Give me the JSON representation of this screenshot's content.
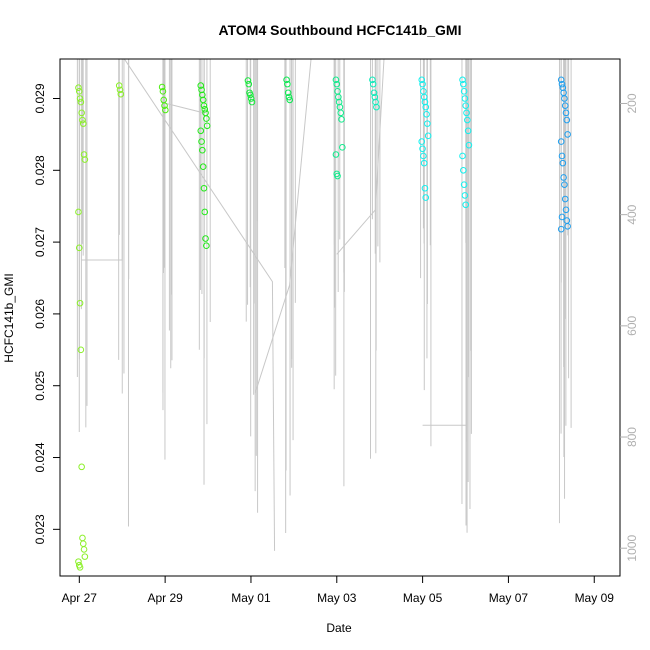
{
  "chart_data": {
    "type": "scatter",
    "title": "ATOM4 Southbound HCFC141b_GMI",
    "xlabel": "Date",
    "ylabel": "HCFC141b_GMI",
    "x_ticks": [
      {
        "day": 0,
        "label": "Apr 27"
      },
      {
        "day": 2,
        "label": "Apr 29"
      },
      {
        "day": 4,
        "label": "May 01"
      },
      {
        "day": 6,
        "label": "May 03"
      },
      {
        "day": 8,
        "label": "May 05"
      },
      {
        "day": 10,
        "label": "May 07"
      },
      {
        "day": 12,
        "label": "May 09"
      }
    ],
    "xlim": [
      -0.45,
      12.6
    ],
    "ylim": [
      0.02235,
      0.02955
    ],
    "y_ticks": [
      "0.023",
      "0.024",
      "0.025",
      "0.026",
      "0.027",
      "0.028",
      "0.029"
    ],
    "y2_label": "",
    "y2lim": [
      1050,
      120
    ],
    "y2_ticks": [
      "200",
      "400",
      "600",
      "800",
      "1000"
    ],
    "grid": false,
    "legend": "none",
    "profile_color": "#c8c8c8",
    "series": [
      {
        "day": 0.05,
        "color": "#8cf02a",
        "values": [
          0.02915,
          0.0291,
          0.029,
          0.02895,
          0.0288,
          0.0287,
          0.02865,
          0.02822,
          0.02815,
          0.02742,
          0.02692,
          0.02615,
          0.0255,
          0.02387,
          0.02288,
          0.0228,
          0.02272,
          0.02262,
          0.02255,
          0.0225,
          0.02247
        ]
      },
      {
        "day": 1.0,
        "color": "#8cf02a",
        "values": [
          0.02918,
          0.02912,
          0.02906
        ]
      },
      {
        "day": 2.0,
        "color": "#4cee10",
        "values": [
          0.02916,
          0.0291,
          0.02898,
          0.0289,
          0.02884
        ]
      },
      {
        "day": 2.9,
        "color": "#22ea18",
        "values": [
          0.02918,
          0.02912,
          0.02905,
          0.02898,
          0.0289,
          0.02885,
          0.0288,
          0.02872,
          0.02862,
          0.02855,
          0.0284,
          0.02828,
          0.02805,
          0.02775,
          0.02742,
          0.02705,
          0.02695
        ]
      },
      {
        "day": 4.0,
        "color": "#14ea3a",
        "values": [
          0.02925,
          0.0292,
          0.02908,
          0.02905,
          0.029,
          0.02895
        ]
      },
      {
        "day": 4.9,
        "color": "#0aeb50",
        "values": [
          0.02926,
          0.0292,
          0.02908,
          0.02902,
          0.02898
        ]
      },
      {
        "day": 6.05,
        "color": "#10ec8c",
        "values": [
          0.02926,
          0.0292,
          0.0291,
          0.02902,
          0.02895,
          0.02888,
          0.0288,
          0.02871,
          0.02832,
          0.02822,
          0.02795,
          0.02792
        ]
      },
      {
        "day": 6.9,
        "color": "#10ecbc",
        "values": [
          0.02926,
          0.0292,
          0.02908,
          0.02902,
          0.02895,
          0.02888
        ]
      },
      {
        "day": 8.05,
        "color": "#12f0ee",
        "values": [
          0.02926,
          0.0292,
          0.0291,
          0.02902,
          0.02895,
          0.02888,
          0.02878,
          0.02865,
          0.02848,
          0.0284,
          0.0283,
          0.0282,
          0.0281,
          0.02775,
          0.02762
        ]
      },
      {
        "day": 9.0,
        "color": "#12f0ee",
        "values": [
          0.02926,
          0.0292,
          0.0291,
          0.029,
          0.0289,
          0.0288,
          0.0287,
          0.02855,
          0.02835,
          0.0282,
          0.028,
          0.0278,
          0.02765,
          0.02752
        ]
      },
      {
        "day": 11.3,
        "color": "#1fa0f0",
        "values": [
          0.02926,
          0.0292,
          0.02915,
          0.02908,
          0.029,
          0.0289,
          0.0288,
          0.0287,
          0.0285,
          0.0284,
          0.0282,
          0.0281,
          0.0279,
          0.0278,
          0.0276,
          0.02745,
          0.0273,
          0.02722,
          0.02718,
          0.02735
        ]
      }
    ]
  }
}
